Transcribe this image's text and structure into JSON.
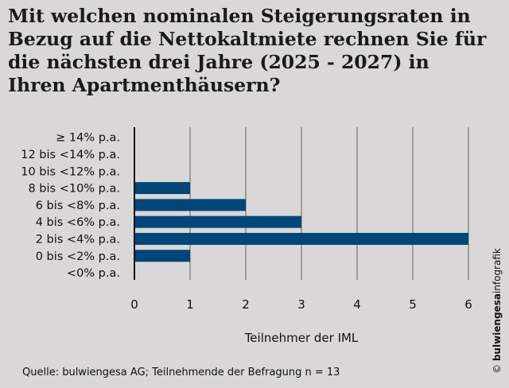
{
  "title": "Mit welchen nominalen Steigerungsraten in Bezug auf die Nettokaltmiete rechnen Sie für die nächsten drei Jahre (2025 - 2027) in Ihren Apartmenthäusern?",
  "source": "Quelle: bulwiengesa AG; Teilnehmende der Befragung n = 13",
  "copyright": {
    "symbol": "©",
    "brand": "bulwiengesa",
    "suffix": "infografik"
  },
  "colors": {
    "bar": "#004678",
    "background": "#d9d7d7",
    "grid": "#8a8a8a"
  },
  "chart_data": {
    "type": "bar",
    "orientation": "horizontal",
    "categories": [
      "≥ 14% p.a.",
      "12 bis <14% p.a.",
      "10 bis <12% p.a.",
      "8 bis <10% p.a.",
      "6 bis <8% p.a.",
      "4 bis <6% p.a.",
      "2 bis <4% p.a.",
      "0 bis <2% p.a.",
      "<0% p.a."
    ],
    "values": [
      0,
      0,
      0,
      1,
      2,
      3,
      6,
      1,
      0
    ],
    "xlabel": "Teilnehmer der IML",
    "xlim": [
      0,
      6
    ],
    "xticks": [
      0,
      1,
      2,
      3,
      4,
      5,
      6
    ],
    "grid": true
  }
}
